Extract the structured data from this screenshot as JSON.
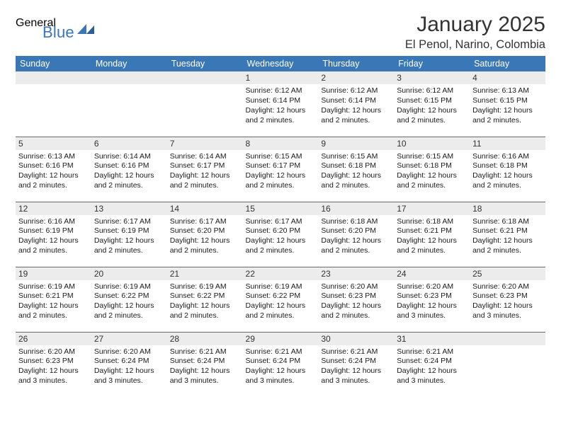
{
  "logo": {
    "general": "General",
    "blue": "Blue"
  },
  "header": {
    "month_title": "January 2025",
    "location": "El Penol, Narino, Colombia"
  },
  "colors": {
    "header_bg": "#3a77b6",
    "header_fg": "#ffffff",
    "daynum_bg": "#ececec",
    "rule": "#6b6b6b",
    "logo_gray": "#58595b",
    "logo_blue": "#3a77b6"
  },
  "day_names": [
    "Sunday",
    "Monday",
    "Tuesday",
    "Wednesday",
    "Thursday",
    "Friday",
    "Saturday"
  ],
  "weeks": [
    [
      {
        "n": "",
        "sr": "",
        "ss": "",
        "dl": ""
      },
      {
        "n": "",
        "sr": "",
        "ss": "",
        "dl": ""
      },
      {
        "n": "",
        "sr": "",
        "ss": "",
        "dl": ""
      },
      {
        "n": "1",
        "sr": "Sunrise: 6:12 AM",
        "ss": "Sunset: 6:14 PM",
        "dl": "Daylight: 12 hours and 2 minutes."
      },
      {
        "n": "2",
        "sr": "Sunrise: 6:12 AM",
        "ss": "Sunset: 6:14 PM",
        "dl": "Daylight: 12 hours and 2 minutes."
      },
      {
        "n": "3",
        "sr": "Sunrise: 6:12 AM",
        "ss": "Sunset: 6:15 PM",
        "dl": "Daylight: 12 hours and 2 minutes."
      },
      {
        "n": "4",
        "sr": "Sunrise: 6:13 AM",
        "ss": "Sunset: 6:15 PM",
        "dl": "Daylight: 12 hours and 2 minutes."
      }
    ],
    [
      {
        "n": "5",
        "sr": "Sunrise: 6:13 AM",
        "ss": "Sunset: 6:16 PM",
        "dl": "Daylight: 12 hours and 2 minutes."
      },
      {
        "n": "6",
        "sr": "Sunrise: 6:14 AM",
        "ss": "Sunset: 6:16 PM",
        "dl": "Daylight: 12 hours and 2 minutes."
      },
      {
        "n": "7",
        "sr": "Sunrise: 6:14 AM",
        "ss": "Sunset: 6:17 PM",
        "dl": "Daylight: 12 hours and 2 minutes."
      },
      {
        "n": "8",
        "sr": "Sunrise: 6:15 AM",
        "ss": "Sunset: 6:17 PM",
        "dl": "Daylight: 12 hours and 2 minutes."
      },
      {
        "n": "9",
        "sr": "Sunrise: 6:15 AM",
        "ss": "Sunset: 6:18 PM",
        "dl": "Daylight: 12 hours and 2 minutes."
      },
      {
        "n": "10",
        "sr": "Sunrise: 6:15 AM",
        "ss": "Sunset: 6:18 PM",
        "dl": "Daylight: 12 hours and 2 minutes."
      },
      {
        "n": "11",
        "sr": "Sunrise: 6:16 AM",
        "ss": "Sunset: 6:18 PM",
        "dl": "Daylight: 12 hours and 2 minutes."
      }
    ],
    [
      {
        "n": "12",
        "sr": "Sunrise: 6:16 AM",
        "ss": "Sunset: 6:19 PM",
        "dl": "Daylight: 12 hours and 2 minutes."
      },
      {
        "n": "13",
        "sr": "Sunrise: 6:17 AM",
        "ss": "Sunset: 6:19 PM",
        "dl": "Daylight: 12 hours and 2 minutes."
      },
      {
        "n": "14",
        "sr": "Sunrise: 6:17 AM",
        "ss": "Sunset: 6:20 PM",
        "dl": "Daylight: 12 hours and 2 minutes."
      },
      {
        "n": "15",
        "sr": "Sunrise: 6:17 AM",
        "ss": "Sunset: 6:20 PM",
        "dl": "Daylight: 12 hours and 2 minutes."
      },
      {
        "n": "16",
        "sr": "Sunrise: 6:18 AM",
        "ss": "Sunset: 6:20 PM",
        "dl": "Daylight: 12 hours and 2 minutes."
      },
      {
        "n": "17",
        "sr": "Sunrise: 6:18 AM",
        "ss": "Sunset: 6:21 PM",
        "dl": "Daylight: 12 hours and 2 minutes."
      },
      {
        "n": "18",
        "sr": "Sunrise: 6:18 AM",
        "ss": "Sunset: 6:21 PM",
        "dl": "Daylight: 12 hours and 2 minutes."
      }
    ],
    [
      {
        "n": "19",
        "sr": "Sunrise: 6:19 AM",
        "ss": "Sunset: 6:21 PM",
        "dl": "Daylight: 12 hours and 2 minutes."
      },
      {
        "n": "20",
        "sr": "Sunrise: 6:19 AM",
        "ss": "Sunset: 6:22 PM",
        "dl": "Daylight: 12 hours and 2 minutes."
      },
      {
        "n": "21",
        "sr": "Sunrise: 6:19 AM",
        "ss": "Sunset: 6:22 PM",
        "dl": "Daylight: 12 hours and 2 minutes."
      },
      {
        "n": "22",
        "sr": "Sunrise: 6:19 AM",
        "ss": "Sunset: 6:22 PM",
        "dl": "Daylight: 12 hours and 2 minutes."
      },
      {
        "n": "23",
        "sr": "Sunrise: 6:20 AM",
        "ss": "Sunset: 6:23 PM",
        "dl": "Daylight: 12 hours and 2 minutes."
      },
      {
        "n": "24",
        "sr": "Sunrise: 6:20 AM",
        "ss": "Sunset: 6:23 PM",
        "dl": "Daylight: 12 hours and 3 minutes."
      },
      {
        "n": "25",
        "sr": "Sunrise: 6:20 AM",
        "ss": "Sunset: 6:23 PM",
        "dl": "Daylight: 12 hours and 3 minutes."
      }
    ],
    [
      {
        "n": "26",
        "sr": "Sunrise: 6:20 AM",
        "ss": "Sunset: 6:23 PM",
        "dl": "Daylight: 12 hours and 3 minutes."
      },
      {
        "n": "27",
        "sr": "Sunrise: 6:20 AM",
        "ss": "Sunset: 6:24 PM",
        "dl": "Daylight: 12 hours and 3 minutes."
      },
      {
        "n": "28",
        "sr": "Sunrise: 6:21 AM",
        "ss": "Sunset: 6:24 PM",
        "dl": "Daylight: 12 hours and 3 minutes."
      },
      {
        "n": "29",
        "sr": "Sunrise: 6:21 AM",
        "ss": "Sunset: 6:24 PM",
        "dl": "Daylight: 12 hours and 3 minutes."
      },
      {
        "n": "30",
        "sr": "Sunrise: 6:21 AM",
        "ss": "Sunset: 6:24 PM",
        "dl": "Daylight: 12 hours and 3 minutes."
      },
      {
        "n": "31",
        "sr": "Sunrise: 6:21 AM",
        "ss": "Sunset: 6:24 PM",
        "dl": "Daylight: 12 hours and 3 minutes."
      },
      {
        "n": "",
        "sr": "",
        "ss": "",
        "dl": ""
      }
    ]
  ]
}
